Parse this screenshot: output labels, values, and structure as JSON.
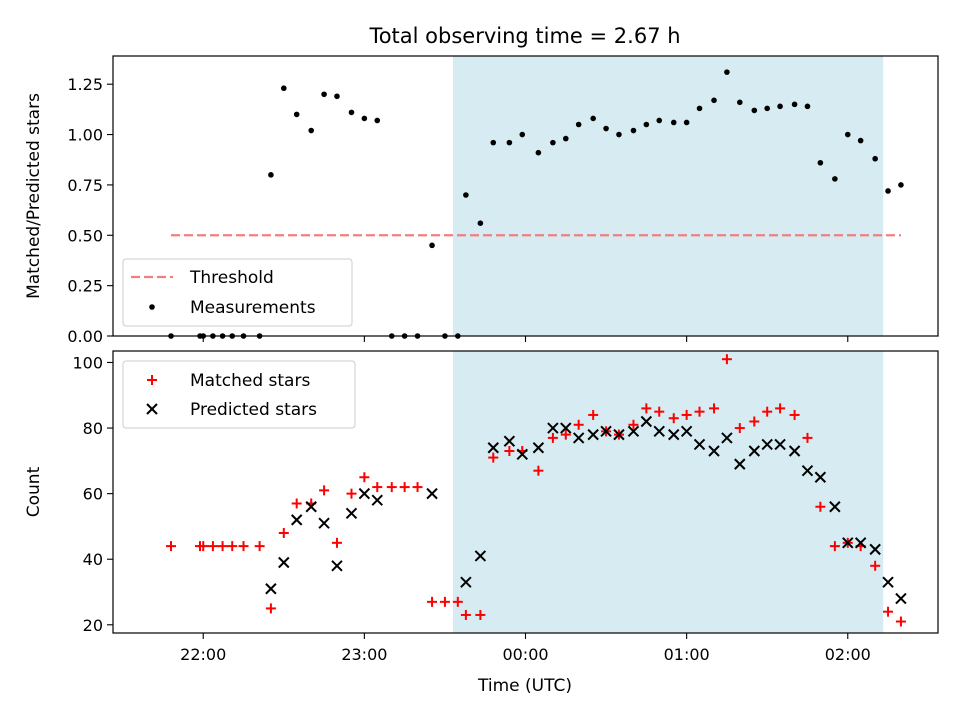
{
  "figure": {
    "title": "Total observing time = 2.67 h",
    "shaded_interval": {
      "start_hours_utc": 23.55,
      "end_hours_utc": 26.22,
      "color": "#add8e6"
    }
  },
  "x_axis": {
    "label": "Time (UTC)",
    "range_hours_utc": [
      21.44,
      26.56
    ],
    "ticks": [
      {
        "value": 22.0,
        "label": "22:00"
      },
      {
        "value": 23.0,
        "label": "23:00"
      },
      {
        "value": 24.0,
        "label": "00:00"
      },
      {
        "value": 25.0,
        "label": "01:00"
      },
      {
        "value": 26.0,
        "label": "02:00"
      }
    ]
  },
  "chart_data": [
    {
      "type": "scatter",
      "ylabel": "Matched/Predicted stars",
      "ylim": [
        0,
        1.39
      ],
      "yticks": [
        0.0,
        0.25,
        0.5,
        0.75,
        1.0,
        1.25
      ],
      "ytick_labels": [
        "0.00",
        "0.25",
        "0.50",
        "0.75",
        "1.00",
        "1.25"
      ],
      "legend": {
        "placement": "lower-left",
        "entries": [
          "Threshold",
          "Measurements"
        ]
      },
      "threshold": {
        "name": "Threshold",
        "y": 0.5,
        "x_start": 21.8,
        "x_end": 26.33,
        "color": "#f08080",
        "style": "dashed"
      },
      "series": [
        {
          "name": "Measurements",
          "color": "#000000",
          "marker": "dot",
          "points": [
            [
              21.8,
              0.0
            ],
            [
              21.98,
              0.0
            ],
            [
              22.0,
              0.0
            ],
            [
              22.06,
              0.0
            ],
            [
              22.12,
              0.0
            ],
            [
              22.18,
              0.0
            ],
            [
              22.25,
              0.0
            ],
            [
              22.35,
              0.0
            ],
            [
              22.42,
              0.8
            ],
            [
              22.5,
              1.23
            ],
            [
              22.58,
              1.1
            ],
            [
              22.67,
              1.02
            ],
            [
              22.75,
              1.2
            ],
            [
              22.83,
              1.19
            ],
            [
              22.92,
              1.11
            ],
            [
              23.0,
              1.08
            ],
            [
              23.08,
              1.07
            ],
            [
              23.17,
              0.0
            ],
            [
              23.25,
              0.0
            ],
            [
              23.33,
              0.0
            ],
            [
              23.42,
              0.45
            ],
            [
              23.5,
              0.0
            ],
            [
              23.58,
              0.0
            ],
            [
              23.63,
              0.7
            ],
            [
              23.72,
              0.56
            ],
            [
              23.8,
              0.96
            ],
            [
              23.9,
              0.96
            ],
            [
              23.98,
              1.0
            ],
            [
              24.08,
              0.91
            ],
            [
              24.17,
              0.96
            ],
            [
              24.25,
              0.98
            ],
            [
              24.33,
              1.05
            ],
            [
              24.42,
              1.08
            ],
            [
              24.5,
              1.03
            ],
            [
              24.58,
              1.0
            ],
            [
              24.67,
              1.02
            ],
            [
              24.75,
              1.05
            ],
            [
              24.83,
              1.07
            ],
            [
              24.92,
              1.06
            ],
            [
              25.0,
              1.06
            ],
            [
              25.08,
              1.13
            ],
            [
              25.17,
              1.17
            ],
            [
              25.25,
              1.31
            ],
            [
              25.33,
              1.16
            ],
            [
              25.42,
              1.12
            ],
            [
              25.5,
              1.13
            ],
            [
              25.58,
              1.14
            ],
            [
              25.67,
              1.15
            ],
            [
              25.75,
              1.14
            ],
            [
              25.83,
              0.86
            ],
            [
              25.92,
              0.78
            ],
            [
              26.0,
              1.0
            ],
            [
              26.08,
              0.97
            ],
            [
              26.17,
              0.88
            ],
            [
              26.25,
              0.72
            ],
            [
              26.33,
              0.75
            ]
          ]
        }
      ]
    },
    {
      "type": "scatter",
      "ylabel": "Count",
      "ylim": [
        17.5,
        103.5
      ],
      "yticks": [
        20,
        40,
        60,
        80,
        100
      ],
      "ytick_labels": [
        "20",
        "40",
        "60",
        "80",
        "100"
      ],
      "legend": {
        "placement": "upper-left",
        "entries": [
          "Matched stars",
          "Predicted stars"
        ]
      },
      "series": [
        {
          "name": "Matched stars",
          "color": "#ff0000",
          "marker": "plus",
          "points": [
            [
              21.8,
              44
            ],
            [
              21.98,
              44
            ],
            [
              22.0,
              44
            ],
            [
              22.06,
              44
            ],
            [
              22.12,
              44
            ],
            [
              22.18,
              44
            ],
            [
              22.25,
              44
            ],
            [
              22.35,
              44
            ],
            [
              22.42,
              25
            ],
            [
              22.5,
              48
            ],
            [
              22.58,
              57
            ],
            [
              22.67,
              57
            ],
            [
              22.75,
              61
            ],
            [
              22.83,
              45
            ],
            [
              22.92,
              60
            ],
            [
              23.0,
              65
            ],
            [
              23.08,
              62
            ],
            [
              23.17,
              62
            ],
            [
              23.25,
              62
            ],
            [
              23.33,
              62
            ],
            [
              23.42,
              27
            ],
            [
              23.5,
              27
            ],
            [
              23.58,
              27
            ],
            [
              23.63,
              23
            ],
            [
              23.72,
              23
            ],
            [
              23.8,
              71
            ],
            [
              23.9,
              73
            ],
            [
              23.98,
              73
            ],
            [
              24.08,
              67
            ],
            [
              24.17,
              77
            ],
            [
              24.25,
              78
            ],
            [
              24.33,
              81
            ],
            [
              24.42,
              84
            ],
            [
              24.5,
              79
            ],
            [
              24.58,
              78
            ],
            [
              24.67,
              81
            ],
            [
              24.75,
              86
            ],
            [
              24.83,
              85
            ],
            [
              24.92,
              83
            ],
            [
              25.0,
              84
            ],
            [
              25.08,
              85
            ],
            [
              25.17,
              86
            ],
            [
              25.25,
              101
            ],
            [
              25.33,
              80
            ],
            [
              25.42,
              82
            ],
            [
              25.5,
              85
            ],
            [
              25.58,
              86
            ],
            [
              25.67,
              84
            ],
            [
              25.75,
              77
            ],
            [
              25.83,
              56
            ],
            [
              25.92,
              44
            ],
            [
              26.0,
              45
            ],
            [
              26.08,
              44
            ],
            [
              26.17,
              38
            ],
            [
              26.25,
              24
            ],
            [
              26.33,
              21
            ]
          ]
        },
        {
          "name": "Predicted stars",
          "color": "#000000",
          "marker": "x",
          "points": [
            [
              22.42,
              31
            ],
            [
              22.5,
              39
            ],
            [
              22.58,
              52
            ],
            [
              22.67,
              56
            ],
            [
              22.75,
              51
            ],
            [
              22.83,
              38
            ],
            [
              22.92,
              54
            ],
            [
              23.0,
              60
            ],
            [
              23.08,
              58
            ],
            [
              23.42,
              60
            ],
            [
              23.63,
              33
            ],
            [
              23.72,
              41
            ],
            [
              23.8,
              74
            ],
            [
              23.9,
              76
            ],
            [
              23.98,
              72
            ],
            [
              24.08,
              74
            ],
            [
              24.17,
              80
            ],
            [
              24.25,
              80
            ],
            [
              24.33,
              77
            ],
            [
              24.42,
              78
            ],
            [
              24.5,
              79
            ],
            [
              24.58,
              78
            ],
            [
              24.67,
              79
            ],
            [
              24.75,
              82
            ],
            [
              24.83,
              79
            ],
            [
              24.92,
              78
            ],
            [
              25.0,
              79
            ],
            [
              25.08,
              75
            ],
            [
              25.17,
              73
            ],
            [
              25.25,
              77
            ],
            [
              25.33,
              69
            ],
            [
              25.42,
              73
            ],
            [
              25.5,
              75
            ],
            [
              25.58,
              75
            ],
            [
              25.67,
              73
            ],
            [
              25.75,
              67
            ],
            [
              25.83,
              65
            ],
            [
              25.92,
              56
            ],
            [
              26.0,
              45
            ],
            [
              26.08,
              45
            ],
            [
              26.17,
              43
            ],
            [
              26.25,
              33
            ],
            [
              26.33,
              28
            ]
          ]
        }
      ]
    }
  ]
}
